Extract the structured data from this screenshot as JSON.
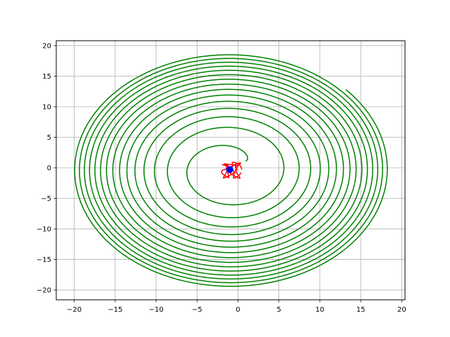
{
  "chart_data": {
    "type": "line",
    "title": "",
    "xlabel": "",
    "ylabel": "",
    "xlim": [
      -22.2,
      20.4
    ],
    "ylim": [
      -21.6,
      20.8
    ],
    "grid": true,
    "x_ticks": [
      -20,
      -15,
      -10,
      -5,
      0,
      5,
      10,
      15,
      20
    ],
    "y_ticks": [
      -20,
      -15,
      -10,
      -5,
      0,
      5,
      10,
      15,
      20
    ],
    "x_tick_labels": [
      "−20",
      "−15",
      "−10",
      "−5",
      "0",
      "5",
      "10",
      "15",
      "20"
    ],
    "y_tick_labels": [
      "−20",
      "−15",
      "−10",
      "−5",
      "0",
      "5",
      "10",
      "15",
      "20"
    ],
    "series": [
      {
        "color": "#008000",
        "kind": "expanding spiral",
        "center": [
          -1.0,
          -0.3
        ],
        "start": [
          1.5,
          1.7
        ],
        "end": [
          13.4,
          13.0
        ],
        "radius_start_x": 2.5,
        "radius_end_x": 19.3,
        "radius_start_y": 2.2,
        "radius_end_y": 19.3,
        "turns": 16
      },
      {
        "color": "#ff0000",
        "kind": "tangled loops near origin",
        "center": [
          -0.8,
          -0.3
        ],
        "extent_x": [
          -2.0,
          0.2
        ],
        "extent_y": [
          -1.6,
          1.4
        ]
      },
      {
        "color": "#0000ff",
        "kind": "point",
        "x": -1.0,
        "y": -0.3
      }
    ]
  }
}
